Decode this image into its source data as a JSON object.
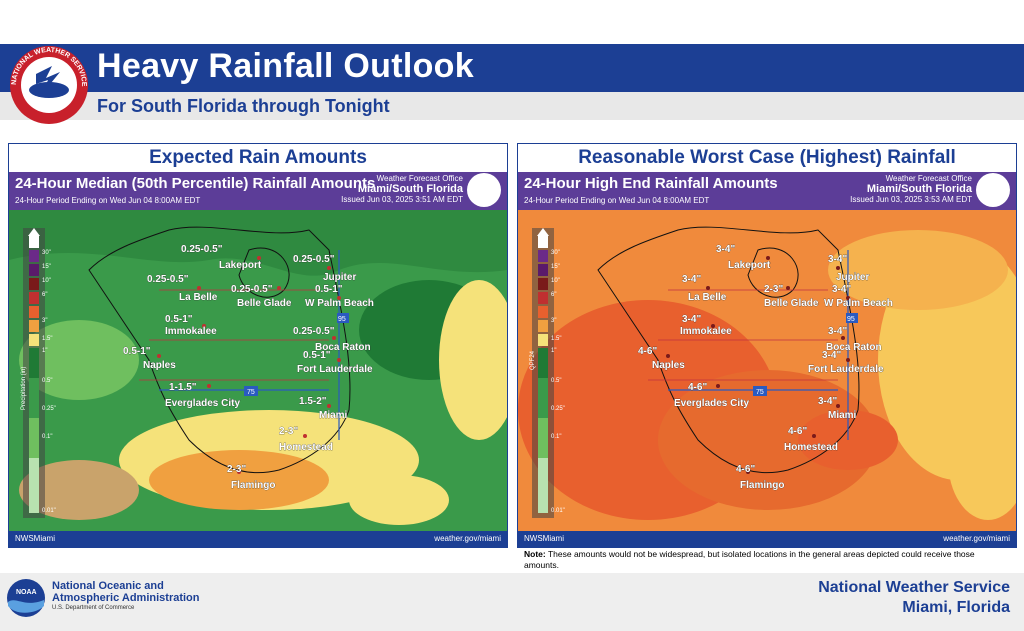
{
  "header": {
    "title": "Heavy Rainfall Outlook",
    "subtitle": "For South Florida through Tonight"
  },
  "nws_logo_text": "NATIONAL WEATHER SERVICE",
  "panels": [
    {
      "heading": "Expected Rain Amounts",
      "map_title": "24-Hour Median (50th Percentile) Rainfall Amounts",
      "period": "24-Hour Period Ending on Wed Jun 04 8:00AM EDT",
      "office_label": "Weather Forecast Office",
      "office": "Miami/South Florida",
      "issued": "Issued Jun 03, 2025 3:51 AM EDT",
      "legend_axis": "Precipitation (in)",
      "legend_ticks": [
        "30\"",
        "15\"",
        "10\"",
        "6\"",
        "3\"",
        "1.5\"",
        "1\"",
        "0.5\"",
        "0.25\"",
        "0.1\"",
        "0.01\""
      ],
      "footer_social": "NWSMiami",
      "footer_url": "weather.gov/miami",
      "locations": [
        {
          "name": "Lakeport",
          "amount": "0.25-0.5\""
        },
        {
          "name": "La Belle",
          "amount": "0.25-0.5\""
        },
        {
          "name": "Belle Glade",
          "amount": "0.25-0.5\""
        },
        {
          "name": "Jupiter",
          "amount": "0.25-0.5\""
        },
        {
          "name": "W Palm Beach",
          "amount": "0.5-1\""
        },
        {
          "name": "Immokalee",
          "amount": "0.5-1\""
        },
        {
          "name": "Boca Raton",
          "amount": "0.25-0.5\""
        },
        {
          "name": "Naples",
          "amount": "0.5-1\""
        },
        {
          "name": "Fort Lauderdale",
          "amount": "0.5-1\""
        },
        {
          "name": "Everglades City",
          "amount": "1-1.5\""
        },
        {
          "name": "Miami",
          "amount": "1.5-2\""
        },
        {
          "name": "Homestead",
          "amount": "2-3\""
        },
        {
          "name": "Flamingo",
          "amount": "2-3\""
        }
      ],
      "colors": {
        "base": "#3a9a4a",
        "light": "#6fbf5f",
        "dark": "#1f7a35",
        "yellow": "#f5e27a",
        "orange": "#f0a040",
        "legend_tan": "#c9a36b"
      }
    },
    {
      "heading": "Reasonable Worst Case (Highest) Rainfall",
      "map_title": "24-Hour High End Rainfall Amounts",
      "period": "24-Hour Period Ending on Wed Jun 04 8:00AM EDT",
      "office_label": "Weather Forecast Office",
      "office": "Miami/South Florida",
      "issued": "Issued Jun 03, 2025 3:53 AM EDT",
      "legend_axis": "QPF24",
      "legend_ticks": [
        "30\"",
        "15\"",
        "10\"",
        "6\"",
        "3\"",
        "1.5\"",
        "1\"",
        "0.5\"",
        "0.25\"",
        "0.1\"",
        "0.01\""
      ],
      "footer_social": "NWSMiami",
      "footer_url": "weather.gov/miami",
      "locations": [
        {
          "name": "Lakeport",
          "amount": "3-4\""
        },
        {
          "name": "La Belle",
          "amount": "3-4\""
        },
        {
          "name": "Belle Glade",
          "amount": "2-3\""
        },
        {
          "name": "Jupiter",
          "amount": "3-4\""
        },
        {
          "name": "W Palm Beach",
          "amount": "3-4\""
        },
        {
          "name": "Immokalee",
          "amount": "3-4\""
        },
        {
          "name": "Boca Raton",
          "amount": "3-4\""
        },
        {
          "name": "Naples",
          "amount": "4-6\""
        },
        {
          "name": "Fort Lauderdale",
          "amount": "3-4\""
        },
        {
          "name": "Everglades City",
          "amount": "4-6\""
        },
        {
          "name": "Miami",
          "amount": "3-4\""
        },
        {
          "name": "Homestead",
          "amount": "4-6\""
        },
        {
          "name": "Flamingo",
          "amount": "4-6\""
        }
      ],
      "colors": {
        "base": "#f08a3c",
        "light": "#f5b24e",
        "dark": "#e8602e",
        "yellow": "#f7c85a",
        "orange": "#e66a2e"
      }
    }
  ],
  "note": {
    "label": "Note:",
    "text": "These amounts would not be widespread, but isolated locations in the general areas depicted could receive those amounts."
  },
  "footer": {
    "agency_line1": "National Oceanic and",
    "agency_line2": "Atmospheric Administration",
    "department": "U.S. Department of Commerce",
    "noaa_logo_text": "NOAA",
    "nws_line1": "National Weather Service",
    "nws_line2": "Miami, Florida"
  },
  "highway_labels": [
    "75",
    "95"
  ]
}
